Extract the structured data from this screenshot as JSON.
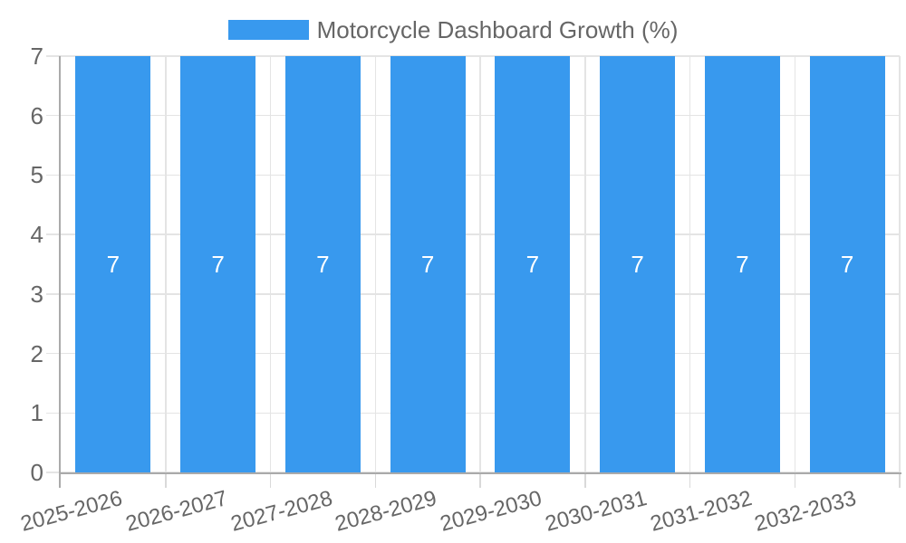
{
  "chart_data": {
    "type": "bar",
    "title": "Motorcycle Dashboard Growth (%)",
    "categories": [
      "2025-2026",
      "2026-2027",
      "2027-2028",
      "2028-2029",
      "2029-2030",
      "2030-2031",
      "2031-2032",
      "2032-2033"
    ],
    "series": [
      {
        "name": "Motorcycle Dashboard Growth (%)",
        "values": [
          7,
          7,
          7,
          7,
          7,
          7,
          7,
          7
        ]
      }
    ],
    "bar_value_labels": [
      "7",
      "7",
      "7",
      "7",
      "7",
      "7",
      "7",
      "7"
    ],
    "xlabel": "",
    "ylabel": "",
    "ylim": [
      0,
      7
    ],
    "yticks": [
      0,
      1,
      2,
      3,
      4,
      5,
      6,
      7
    ],
    "grid": true,
    "legend_position": "top",
    "colors": {
      "bar": "#3899ee",
      "bar_value_label": "#ffffff",
      "axis_text": "#666666",
      "axis_line": "#aaaaaa",
      "gridline": "#e4e4e4",
      "tick_line": "#d9d9d9"
    }
  }
}
